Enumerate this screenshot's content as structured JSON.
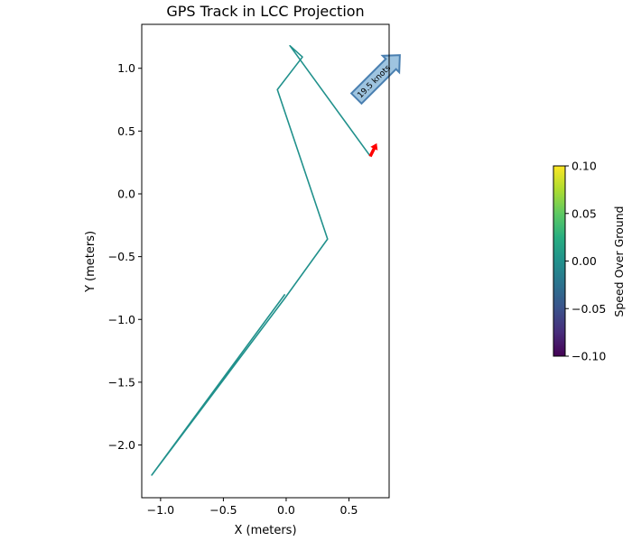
{
  "chart_data": {
    "type": "line",
    "title": "GPS Track in LCC Projection",
    "xlabel": "X (meters)",
    "ylabel": "Y (meters)",
    "xlim": [
      -1.15,
      0.82
    ],
    "ylim": [
      -2.42,
      1.35
    ],
    "xticks": [
      -1.0,
      -0.5,
      0.0,
      0.5
    ],
    "xtick_labels": [
      "−1.0",
      "−0.5",
      "0.0",
      "0.5"
    ],
    "yticks": [
      -2.0,
      -1.5,
      -1.0,
      -0.5,
      0.0,
      0.5,
      1.0
    ],
    "ytick_labels": [
      "−2.0",
      "−1.5",
      "−1.0",
      "−0.5",
      "0.0",
      "0.5",
      "1.0"
    ],
    "grid": false,
    "series": [
      {
        "color": "#21918c",
        "x": [
          -0.01,
          -1.07,
          -0.01,
          0.33,
          -0.07,
          0.13,
          0.03,
          0.67
        ],
        "y": [
          -0.8,
          -2.24,
          -0.83,
          -0.36,
          0.83,
          1.09,
          1.18,
          0.3
        ]
      }
    ],
    "heading_marker": {
      "x": 0.67,
      "y": 0.3,
      "dx": 0.05,
      "dy": 0.1,
      "color": "#ff0000"
    },
    "annotation": {
      "text": "19.5 knots",
      "x": 0.58,
      "y": 0.78,
      "angle_deg": 45,
      "fill": "#9ec4e0",
      "edge": "#4a7fb0"
    },
    "colorbar": {
      "label": "Speed Over Ground",
      "colormap": "viridis",
      "range": [
        -0.1,
        0.1
      ],
      "ticks": [
        0.1,
        0.05,
        0.0,
        -0.05,
        -0.1
      ],
      "tick_labels": [
        "0.10",
        "0.05",
        "0.00",
        "−0.05",
        "−0.10"
      ]
    }
  }
}
